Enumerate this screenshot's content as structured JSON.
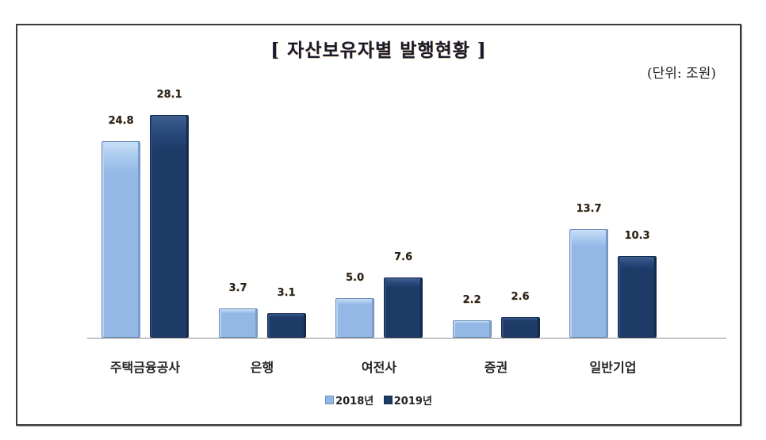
{
  "chart_data": {
    "type": "bar",
    "title": "[ 자산보유자별 발행현황 ]",
    "unit_note": "(단위: 조원)",
    "xlabel": "",
    "ylabel": "",
    "ylim": [
      0,
      30
    ],
    "grid": false,
    "legend_position": "bottom",
    "categories": [
      "주택금융공사",
      "은행",
      "여전사",
      "증권",
      "일반기업"
    ],
    "series": [
      {
        "name": "2018년",
        "color": "#93b8e6",
        "values": [
          24.8,
          3.7,
          5.0,
          2.2,
          13.7
        ]
      },
      {
        "name": "2019년",
        "color": "#1e3a66",
        "values": [
          28.1,
          3.1,
          7.6,
          2.6,
          10.3
        ]
      }
    ]
  },
  "labels": {
    "s2018": [
      "24.8",
      "3.7",
      "5.0",
      "2.2",
      "13.7"
    ],
    "s2019": [
      "28.1",
      "3.1",
      "7.6",
      "2.6",
      "10.3"
    ]
  },
  "legend": {
    "s2018": "2018년",
    "s2019": "2019년"
  }
}
